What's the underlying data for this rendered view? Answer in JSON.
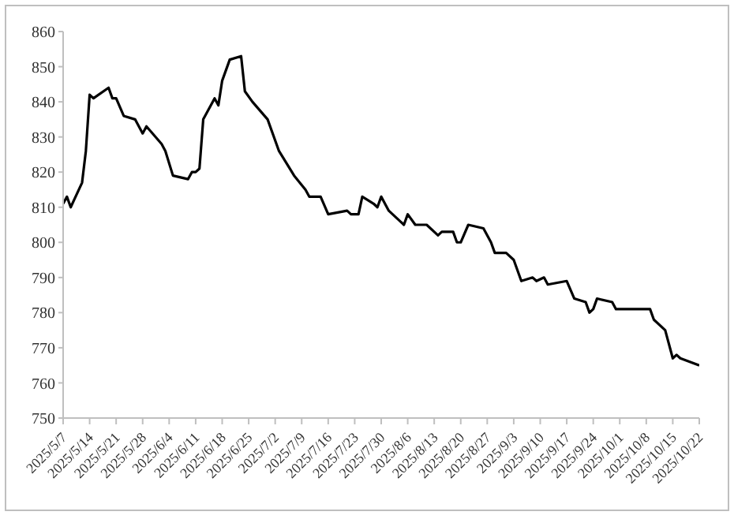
{
  "chart_data": {
    "type": "line",
    "color": "#000000",
    "marker": "none",
    "grid": false,
    "legend": false,
    "x": [
      "2025-05-07",
      "2025-05-08",
      "2025-05-09",
      "2025-05-12",
      "2025-05-13",
      "2025-05-14",
      "2025-05-15",
      "2025-05-19",
      "2025-05-20",
      "2025-05-21",
      "2025-05-23",
      "2025-05-26",
      "2025-05-28",
      "2025-05-29",
      "2025-06-02",
      "2025-06-03",
      "2025-06-05",
      "2025-06-09",
      "2025-06-10",
      "2025-06-11",
      "2025-06-12",
      "2025-06-13",
      "2025-06-16",
      "2025-06-17",
      "2025-06-18",
      "2025-06-20",
      "2025-06-23",
      "2025-06-24",
      "2025-06-26",
      "2025-06-30",
      "2025-07-03",
      "2025-07-07",
      "2025-07-10",
      "2025-07-11",
      "2025-07-14",
      "2025-07-16",
      "2025-07-21",
      "2025-07-22",
      "2025-07-24",
      "2025-07-25",
      "2025-07-28",
      "2025-07-29",
      "2025-07-30",
      "2025-08-01",
      "2025-08-05",
      "2025-08-06",
      "2025-08-08",
      "2025-08-11",
      "2025-08-14",
      "2025-08-15",
      "2025-08-18",
      "2025-08-19",
      "2025-08-20",
      "2025-08-22",
      "2025-08-26",
      "2025-08-28",
      "2025-08-29",
      "2025-09-01",
      "2025-09-03",
      "2025-09-05",
      "2025-09-08",
      "2025-09-09",
      "2025-09-11",
      "2025-09-12",
      "2025-09-17",
      "2025-09-19",
      "2025-09-22",
      "2025-09-23",
      "2025-09-24",
      "2025-09-25",
      "2025-09-29",
      "2025-09-30",
      "2025-10-09",
      "2025-10-10",
      "2025-10-13",
      "2025-10-15",
      "2025-10-16",
      "2025-10-17",
      "2025-10-22"
    ],
    "values": [
      811,
      813,
      810,
      817,
      826,
      842,
      841,
      844,
      841,
      841,
      836,
      835,
      831,
      833,
      828,
      826,
      819,
      818,
      820,
      820,
      821,
      835,
      841,
      839,
      846,
      852,
      853,
      843,
      840,
      835,
      826,
      819,
      815,
      813,
      813,
      808,
      809,
      808,
      808,
      813,
      811,
      810,
      813,
      809,
      805,
      808,
      805,
      805,
      802,
      803,
      803,
      800,
      800,
      805,
      804,
      800,
      797,
      797,
      795,
      789,
      790,
      789,
      790,
      788,
      789,
      784,
      783,
      780,
      781,
      784,
      783,
      781,
      781,
      778,
      775,
      767,
      768,
      767,
      765
    ],
    "ylim": [
      750,
      860
    ],
    "yticks": [
      750,
      760,
      770,
      780,
      790,
      800,
      810,
      820,
      830,
      840,
      850,
      860
    ],
    "xlim": [
      "2025-05-07",
      "2025-10-22"
    ],
    "xticks": [
      {
        "value": "2025-05-07",
        "label": "2025/5/7"
      },
      {
        "value": "2025-05-14",
        "label": "2025/5/14"
      },
      {
        "value": "2025-05-21",
        "label": "2025/5/21"
      },
      {
        "value": "2025-05-28",
        "label": "2025/5/28"
      },
      {
        "value": "2025-06-04",
        "label": "2025/6/4"
      },
      {
        "value": "2025-06-11",
        "label": "2025/6/11"
      },
      {
        "value": "2025-06-18",
        "label": "2025/6/18"
      },
      {
        "value": "2025-06-25",
        "label": "2025/6/25"
      },
      {
        "value": "2025-07-02",
        "label": "2025/7/2"
      },
      {
        "value": "2025-07-09",
        "label": "2025/7/9"
      },
      {
        "value": "2025-07-16",
        "label": "2025/7/16"
      },
      {
        "value": "2025-07-23",
        "label": "2025/7/23"
      },
      {
        "value": "2025-07-30",
        "label": "2025/7/30"
      },
      {
        "value": "2025-08-06",
        "label": "2025/8/6"
      },
      {
        "value": "2025-08-13",
        "label": "2025/8/13"
      },
      {
        "value": "2025-08-20",
        "label": "2025/8/20"
      },
      {
        "value": "2025-08-27",
        "label": "2025/8/27"
      },
      {
        "value": "2025-09-03",
        "label": "2025/9/3"
      },
      {
        "value": "2025-09-10",
        "label": "2025/9/10"
      },
      {
        "value": "2025-09-17",
        "label": "2025/9/17"
      },
      {
        "value": "2025-09-24",
        "label": "2025/9/24"
      },
      {
        "value": "2025-10-01",
        "label": "2025/10/1"
      },
      {
        "value": "2025-10-08",
        "label": "2025/10/8"
      },
      {
        "value": "2025-10-15",
        "label": "2025/10/15"
      },
      {
        "value": "2025-10-22",
        "label": "2025/10/22"
      }
    ]
  }
}
